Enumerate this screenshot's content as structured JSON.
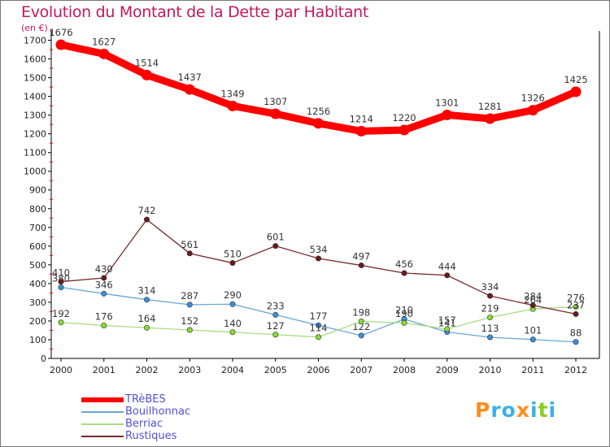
{
  "chart_data": {
    "type": "line",
    "title": "Evolution du Montant de la Dette par Habitant",
    "unit_label": "(en €)",
    "x": [
      "2000",
      "2001",
      "2002",
      "2003",
      "2004",
      "2005",
      "2006",
      "2007",
      "2008",
      "2009",
      "2010",
      "2011",
      "2012"
    ],
    "ylim": [
      0,
      1750
    ],
    "y_ticks": [
      0,
      100,
      200,
      300,
      400,
      500,
      600,
      700,
      800,
      900,
      1000,
      1100,
      1200,
      1300,
      1400,
      1500,
      1600,
      1700
    ],
    "grid": false,
    "legend_position": "bottom-left",
    "series": [
      {
        "name": "TRèBES",
        "color": "#ff0000",
        "line_color": "#ff0000",
        "emphasis": true,
        "values": [
          1676,
          1627,
          1514,
          1437,
          1349,
          1307,
          1256,
          1214,
          1220,
          1301,
          1281,
          1326,
          1425
        ],
        "labels": [
          "1676",
          "1627",
          "1514",
          "1437",
          "1349",
          "1307",
          "1256",
          "1214",
          "1220",
          "1301",
          "1281",
          "1326",
          "1425"
        ]
      },
      {
        "name": "Bouilhonnac",
        "color": "#3a8fd9",
        "line_color": "#6aa6d6",
        "emphasis": false,
        "values": [
          380,
          346,
          314,
          287,
          290,
          233,
          177,
          122,
          210,
          141,
          113,
          101,
          88
        ],
        "labels": [
          "380",
          "346",
          "314",
          "287",
          "290",
          "233",
          "177",
          "122",
          "210",
          "141",
          "113",
          "101",
          "88"
        ]
      },
      {
        "name": "Berriac",
        "color": "#88dd33",
        "line_color": "#a8dc82",
        "emphasis": false,
        "values": [
          192,
          176,
          164,
          152,
          140,
          127,
          114,
          198,
          190,
          157,
          219,
          264,
          276
        ],
        "labels": [
          "192",
          "176",
          "164",
          "152",
          "140",
          "127",
          "114",
          "198",
          "190",
          "157",
          "219",
          "264",
          "276"
        ]
      },
      {
        "name": "Rustiques",
        "color": "#6b1a1a",
        "line_color": "#7a2a2a",
        "emphasis": false,
        "values": [
          410,
          430,
          742,
          561,
          510,
          601,
          534,
          497,
          456,
          444,
          334,
          284,
          237
        ],
        "labels": [
          "410",
          "430",
          "742",
          "561",
          "510",
          "601",
          "534",
          "497",
          "456",
          "444",
          "334",
          "284",
          "237"
        ]
      }
    ]
  },
  "logo": {
    "text": "Proxiti",
    "colors": [
      "#ff8c1a",
      "#3ab0e8",
      "#3ab0e8",
      "#ff8c1a",
      "#3ab0e8",
      "#88cc22",
      "#3ab0e8"
    ]
  }
}
